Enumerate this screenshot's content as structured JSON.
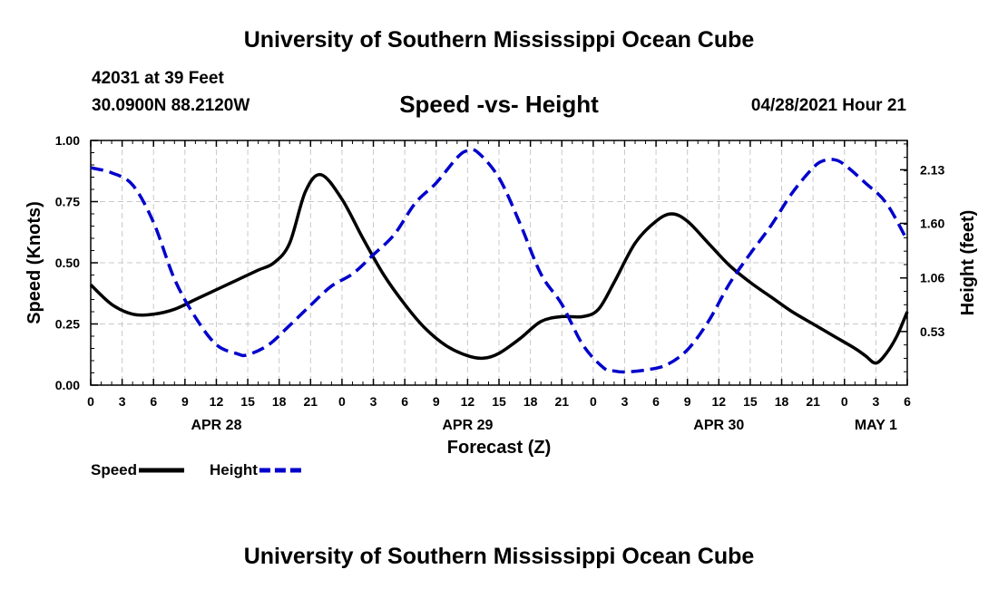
{
  "header": {
    "top_title": "University of Southern Mississippi Ocean Cube",
    "bottom_title": "University of Southern Mississippi Ocean Cube",
    "station": "42031 at 39 Feet",
    "coordinates": "30.0900N  88.2120W",
    "datetime": "04/28/2021 Hour 21"
  },
  "colors": {
    "speed": "#000000",
    "height": "#0000cc",
    "grid": "#c8c8c8"
  },
  "chart_data": {
    "type": "line",
    "title": "Speed -vs- Height",
    "xlabel": "Forecast (Z)",
    "ylabel": "Speed (Knots)",
    "y2label": "Height (feet)",
    "x_hours_range": [
      0,
      78
    ],
    "x_ticks": [
      {
        "h": 0,
        "label": "0"
      },
      {
        "h": 3,
        "label": "3"
      },
      {
        "h": 6,
        "label": "6"
      },
      {
        "h": 9,
        "label": "9"
      },
      {
        "h": 12,
        "label": "12"
      },
      {
        "h": 15,
        "label": "15"
      },
      {
        "h": 18,
        "label": "18"
      },
      {
        "h": 21,
        "label": "21"
      },
      {
        "h": 24,
        "label": "0"
      },
      {
        "h": 27,
        "label": "3"
      },
      {
        "h": 30,
        "label": "6"
      },
      {
        "h": 33,
        "label": "9"
      },
      {
        "h": 36,
        "label": "12"
      },
      {
        "h": 39,
        "label": "15"
      },
      {
        "h": 42,
        "label": "18"
      },
      {
        "h": 45,
        "label": "21"
      },
      {
        "h": 48,
        "label": "0"
      },
      {
        "h": 51,
        "label": "3"
      },
      {
        "h": 54,
        "label": "6"
      },
      {
        "h": 57,
        "label": "9"
      },
      {
        "h": 60,
        "label": "12"
      },
      {
        "h": 63,
        "label": "15"
      },
      {
        "h": 66,
        "label": "18"
      },
      {
        "h": 69,
        "label": "21"
      },
      {
        "h": 72,
        "label": "0"
      },
      {
        "h": 75,
        "label": "3"
      },
      {
        "h": 78,
        "label": "6"
      }
    ],
    "day_labels": [
      {
        "h": 12,
        "label": "APR 28"
      },
      {
        "h": 36,
        "label": "APR 29"
      },
      {
        "h": 60,
        "label": "APR 30"
      },
      {
        "h": 75,
        "label": "MAY 1"
      }
    ],
    "ylim": [
      0,
      1
    ],
    "y_ticks": [
      "0.00",
      "0.25",
      "0.50",
      "0.75",
      "1.00"
    ],
    "y2lim": [
      0,
      2.42
    ],
    "y2_ticks": [
      {
        "v": 0.53,
        "label": "0.53"
      },
      {
        "v": 1.06,
        "label": "1.06"
      },
      {
        "v": 1.6,
        "label": "1.60"
      },
      {
        "v": 2.13,
        "label": "2.13"
      }
    ],
    "series": [
      {
        "name": "Speed",
        "axis": "left",
        "style": "solid",
        "hours": [
          0,
          2,
          4,
          6,
          8,
          10,
          12,
          14,
          16,
          17.5,
          19,
          20.5,
          22,
          24,
          26,
          28,
          30,
          32,
          34,
          36,
          37.5,
          39,
          41,
          43,
          45,
          47,
          48.5,
          50,
          52,
          54,
          55.5,
          57,
          59,
          61,
          63,
          65,
          67,
          69,
          71,
          73,
          74,
          75,
          76,
          77,
          78
        ],
        "values": [
          0.41,
          0.33,
          0.29,
          0.29,
          0.31,
          0.35,
          0.39,
          0.43,
          0.47,
          0.5,
          0.58,
          0.79,
          0.86,
          0.76,
          0.6,
          0.45,
          0.33,
          0.23,
          0.16,
          0.12,
          0.11,
          0.13,
          0.19,
          0.26,
          0.28,
          0.28,
          0.31,
          0.42,
          0.58,
          0.67,
          0.7,
          0.67,
          0.58,
          0.49,
          0.42,
          0.36,
          0.3,
          0.25,
          0.2,
          0.15,
          0.12,
          0.09,
          0.13,
          0.2,
          0.3
        ]
      },
      {
        "name": "Height",
        "axis": "right",
        "style": "dashed",
        "hours": [
          0,
          2,
          4,
          6,
          8,
          10,
          12,
          14,
          15,
          17,
          19,
          21,
          23,
          25,
          27,
          29,
          31,
          33,
          35,
          36,
          37,
          39,
          41,
          43,
          45,
          47,
          49,
          50,
          51,
          53,
          55,
          57,
          59,
          61,
          63,
          65,
          67,
          69,
          70,
          71,
          72,
          74,
          76,
          78
        ],
        "values": [
          2.15,
          2.1,
          1.98,
          1.61,
          1.05,
          0.67,
          0.4,
          0.31,
          0.3,
          0.4,
          0.59,
          0.79,
          0.98,
          1.1,
          1.29,
          1.49,
          1.8,
          2.0,
          2.25,
          2.32,
          2.3,
          2.05,
          1.6,
          1.1,
          0.8,
          0.4,
          0.17,
          0.14,
          0.13,
          0.15,
          0.2,
          0.35,
          0.63,
          1.0,
          1.3,
          1.58,
          1.9,
          2.15,
          2.22,
          2.23,
          2.18,
          2.0,
          1.8,
          1.43
        ]
      }
    ],
    "legend": [
      {
        "name": "Speed",
        "style": "solid"
      },
      {
        "name": "Height",
        "style": "dashed"
      }
    ]
  }
}
